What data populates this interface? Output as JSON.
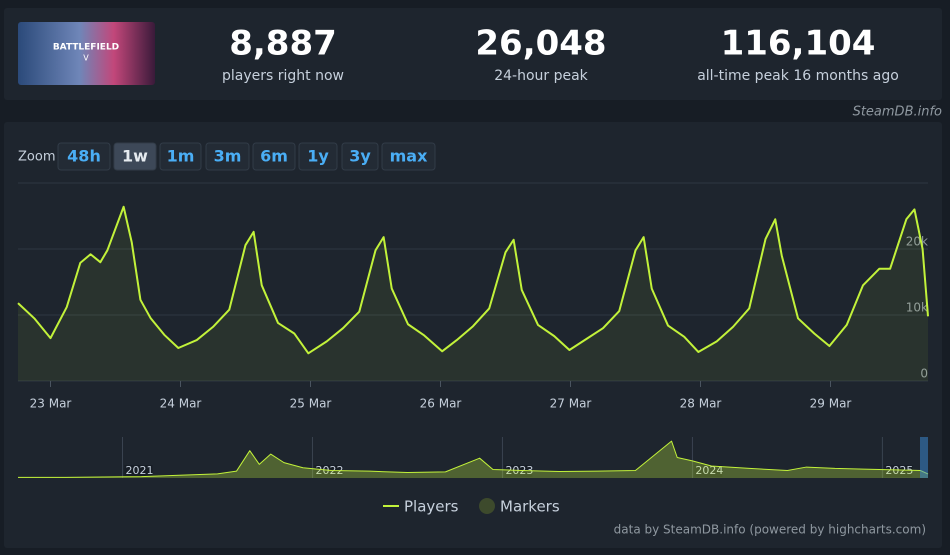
{
  "header": {
    "game_image_text": [
      "BATTLEFIELD",
      "V"
    ],
    "stats": [
      {
        "value": "8,887",
        "label": "players right now"
      },
      {
        "value": "26,048",
        "label": "24-hour peak"
      },
      {
        "value": "116,104",
        "label": "all-time peak 16 months ago"
      }
    ],
    "source": "SteamDB.info"
  },
  "zoom": {
    "label": "Zoom",
    "buttons": [
      "48h",
      "1w",
      "1m",
      "3m",
      "6m",
      "1y",
      "3y",
      "max"
    ],
    "active": 1
  },
  "chart_data": [
    {
      "type": "line",
      "x": [
        -6,
        -3,
        0,
        3,
        5.5,
        7.4,
        9.2,
        10.5,
        13.5,
        15,
        16.6,
        18.5,
        21,
        23.6,
        27,
        30,
        33,
        36,
        37.5,
        39,
        42,
        45,
        47.6,
        51,
        54,
        57,
        60,
        61.5,
        63,
        66,
        69,
        72.3,
        75,
        78,
        81,
        84,
        85.5,
        87,
        90,
        93,
        95.8,
        99,
        102,
        105,
        108,
        109.5,
        111,
        114,
        117,
        119.6,
        123,
        126,
        129,
        132,
        133.8,
        135,
        138,
        141,
        143.8,
        147,
        150,
        153,
        155,
        158,
        159.5,
        161,
        162
      ],
      "series": [
        {
          "name": "Players",
          "color": "#c2f23a",
          "values": [
            11800,
            9500,
            6500,
            11200,
            17900,
            19200,
            18000,
            19800,
            26400,
            21000,
            12300,
            9500,
            7000,
            5000,
            6200,
            8200,
            10800,
            20600,
            22600,
            14500,
            8800,
            7200,
            4200,
            6000,
            8000,
            10500,
            19800,
            21800,
            14000,
            8600,
            6900,
            4500,
            6200,
            8300,
            11000,
            19500,
            21400,
            13800,
            8500,
            6800,
            4700,
            6400,
            8000,
            10600,
            19800,
            21800,
            14000,
            8400,
            6700,
            4400,
            6000,
            8200,
            11000,
            21500,
            24500,
            19000,
            9500,
            7200,
            5300,
            8500,
            14500,
            17000,
            17000,
            24500,
            26000,
            20000,
            9800
          ]
        }
      ],
      "markers_legend": {
        "name": "Markers",
        "color": "#3d4a2c"
      },
      "xlim": [
        -6,
        162
      ],
      "xticks": [
        {
          "value": 0,
          "label": "23 Mar"
        },
        {
          "value": 24,
          "label": "24 Mar"
        },
        {
          "value": 48,
          "label": "25 Mar"
        },
        {
          "value": 72,
          "label": "26 Mar"
        },
        {
          "value": 96,
          "label": "27 Mar"
        },
        {
          "value": 120,
          "label": "28 Mar"
        },
        {
          "value": 144,
          "label": "29 Mar"
        }
      ],
      "ylim": [
        0,
        30000
      ],
      "yticks": [
        0,
        {
          "value": 10000,
          "label": "10k"
        },
        {
          "value": 20000,
          "label": "20k"
        }
      ],
      "grid": true,
      "credits": "data by SteamDB.info (powered by highcharts.com)"
    },
    {
      "type": "area",
      "x": [
        2020.45,
        2020.7,
        2020.9,
        2021.1,
        2021.3,
        2021.5,
        2021.6,
        2021.67,
        2021.72,
        2021.78,
        2021.85,
        2021.95,
        2022.1,
        2022.3,
        2022.5,
        2022.7,
        2022.88,
        2022.95,
        2023.1,
        2023.3,
        2023.5,
        2023.7,
        2023.89,
        2023.92,
        2024.0,
        2024.1,
        2024.3,
        2024.5,
        2024.6,
        2024.75,
        2024.9,
        2025.05,
        2025.2,
        2025.24
      ],
      "series": [
        {
          "name": "Players",
          "color": "#c2f23a",
          "values": [
            2000,
            2000,
            3000,
            4000,
            8000,
            12000,
            20000,
            80000,
            40000,
            70000,
            45000,
            30000,
            22000,
            20000,
            16000,
            18000,
            58000,
            25000,
            22000,
            19000,
            20000,
            22000,
            108000,
            60000,
            50000,
            35000,
            28000,
            22000,
            32000,
            28000,
            26000,
            24000,
            22000,
            12000
          ]
        }
      ],
      "xlim": [
        2020.45,
        2025.24
      ],
      "xticks": [
        2021,
        2022,
        2023,
        2024,
        2025
      ],
      "ylim": [
        0,
        120000
      ]
    }
  ]
}
